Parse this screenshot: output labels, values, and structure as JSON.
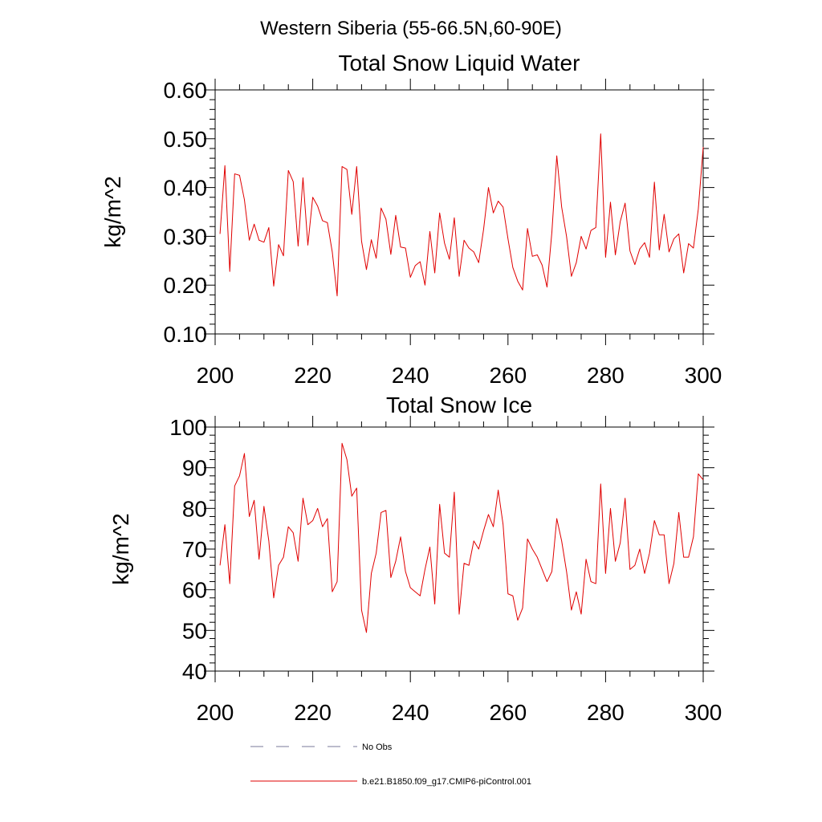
{
  "figure": {
    "main_title": "Western Siberia (55-66.5N,60-90E)"
  },
  "legend": {
    "entries": [
      {
        "label": "No Obs",
        "style": "dashed",
        "color": "#7a7a9a"
      },
      {
        "label": "b.e21.B1850.f09_g17.CMIP6-piControl.001",
        "style": "solid",
        "color": "#e00000"
      }
    ]
  },
  "chart_data": [
    {
      "type": "line",
      "title": "Total Snow Liquid Water",
      "xlabel": "",
      "ylabel": "kg/m^2",
      "xlim": [
        200,
        300
      ],
      "ylim": [
        0.1,
        0.6
      ],
      "xticks": [
        200,
        220,
        240,
        260,
        280,
        300
      ],
      "xtick_labels": [
        "200",
        "220",
        "240",
        "260",
        "280",
        "300"
      ],
      "yticks": [
        0.1,
        0.2,
        0.3,
        0.4,
        0.5,
        0.6
      ],
      "ytick_labels": [
        "0.10",
        "0.20",
        "0.30",
        "0.40",
        "0.50",
        "0.60"
      ],
      "grid": false,
      "series": [
        {
          "color": "#e00000",
          "x": [
            201,
            202,
            203,
            204,
            205,
            206,
            207,
            208,
            209,
            210,
            211,
            212,
            213,
            214,
            215,
            216,
            217,
            218,
            219,
            220,
            221,
            222,
            223,
            224,
            225,
            226,
            227,
            228,
            229,
            230,
            231,
            232,
            233,
            234,
            235,
            236,
            237,
            238,
            239,
            240,
            241,
            242,
            243,
            244,
            245,
            246,
            247,
            248,
            249,
            250,
            251,
            252,
            253,
            254,
            255,
            256,
            257,
            258,
            259,
            260,
            261,
            262,
            263,
            264,
            265,
            266,
            267,
            268,
            269,
            270,
            271,
            272,
            273,
            274,
            275,
            276,
            277,
            278,
            279,
            280,
            281,
            282,
            283,
            284,
            285,
            286,
            287,
            288,
            289,
            290,
            291,
            292,
            293,
            294,
            295,
            296,
            297,
            298,
            299,
            300
          ],
          "y": [
            0.305,
            0.445,
            0.228,
            0.428,
            0.425,
            0.375,
            0.292,
            0.325,
            0.292,
            0.288,
            0.318,
            0.198,
            0.283,
            0.26,
            0.435,
            0.412,
            0.28,
            0.42,
            0.282,
            0.38,
            0.362,
            0.332,
            0.328,
            0.268,
            0.178,
            0.443,
            0.437,
            0.345,
            0.443,
            0.29,
            0.232,
            0.293,
            0.255,
            0.358,
            0.335,
            0.263,
            0.343,
            0.278,
            0.276,
            0.216,
            0.24,
            0.248,
            0.2,
            0.31,
            0.225,
            0.348,
            0.286,
            0.253,
            0.338,
            0.218,
            0.292,
            0.276,
            0.268,
            0.246,
            0.314,
            0.4,
            0.348,
            0.372,
            0.36,
            0.295,
            0.236,
            0.208,
            0.19,
            0.316,
            0.259,
            0.262,
            0.241,
            0.196,
            0.309,
            0.465,
            0.36,
            0.3,
            0.218,
            0.246,
            0.3,
            0.274,
            0.312,
            0.318,
            0.51,
            0.257,
            0.37,
            0.262,
            0.33,
            0.368,
            0.27,
            0.242,
            0.274,
            0.287,
            0.257,
            0.411,
            0.272,
            0.345,
            0.268,
            0.295,
            0.305,
            0.225,
            0.285,
            0.276,
            0.356,
            0.483
          ]
        }
      ]
    },
    {
      "type": "line",
      "title": "Total Snow Ice",
      "xlabel": "",
      "ylabel": "kg/m^2",
      "xlim": [
        200,
        300
      ],
      "ylim": [
        40,
        100
      ],
      "xticks": [
        200,
        220,
        240,
        260,
        280,
        300
      ],
      "xtick_labels": [
        "200",
        "220",
        "240",
        "260",
        "280",
        "300"
      ],
      "yticks": [
        40,
        50,
        60,
        70,
        80,
        90,
        100
      ],
      "ytick_labels": [
        "40",
        "50",
        "60",
        "70",
        "80",
        "90",
        "100"
      ],
      "grid": false,
      "series": [
        {
          "color": "#e00000",
          "x": [
            201,
            202,
            203,
            204,
            205,
            206,
            207,
            208,
            209,
            210,
            211,
            212,
            213,
            214,
            215,
            216,
            217,
            218,
            219,
            220,
            221,
            222,
            223,
            224,
            225,
            226,
            227,
            228,
            229,
            230,
            231,
            232,
            233,
            234,
            235,
            236,
            237,
            238,
            239,
            240,
            241,
            242,
            243,
            244,
            245,
            246,
            247,
            248,
            249,
            250,
            251,
            252,
            253,
            254,
            255,
            256,
            257,
            258,
            259,
            260,
            261,
            262,
            263,
            264,
            265,
            266,
            267,
            268,
            269,
            270,
            271,
            272,
            273,
            274,
            275,
            276,
            277,
            278,
            279,
            280,
            281,
            282,
            283,
            284,
            285,
            286,
            287,
            288,
            289,
            290,
            291,
            292,
            293,
            294,
            295,
            296,
            297,
            298,
            299,
            300
          ],
          "y": [
            66.0,
            76.0,
            61.5,
            85.5,
            88.0,
            93.5,
            78.0,
            82.0,
            67.5,
            80.5,
            72.0,
            58.0,
            66.0,
            68.0,
            75.5,
            74.0,
            67.0,
            82.5,
            76.0,
            77.0,
            80.0,
            75.5,
            77.5,
            59.5,
            62.0,
            96.0,
            92.0,
            83.0,
            85.0,
            55.0,
            49.5,
            64.0,
            69.0,
            79.0,
            79.5,
            63.0,
            67.0,
            73.0,
            64.5,
            60.5,
            59.5,
            58.5,
            65.0,
            70.5,
            56.5,
            81.0,
            69.0,
            68.0,
            84.0,
            54.0,
            66.5,
            66.0,
            72.0,
            70.0,
            74.5,
            78.5,
            75.5,
            84.5,
            76.0,
            59.0,
            58.5,
            52.5,
            55.5,
            72.5,
            70.0,
            68.0,
            65.0,
            62.0,
            64.5,
            77.5,
            72.0,
            64.5,
            55.0,
            59.5,
            54.0,
            67.5,
            62.0,
            61.5,
            86.0,
            64.0,
            80.0,
            67.0,
            71.5,
            82.5,
            65.0,
            66.0,
            70.0,
            64.0,
            69.0,
            77.0,
            73.5,
            73.5,
            61.5,
            66.5,
            79.0,
            68.0,
            68.0,
            73.0,
            88.5,
            87.0
          ]
        }
      ]
    }
  ]
}
